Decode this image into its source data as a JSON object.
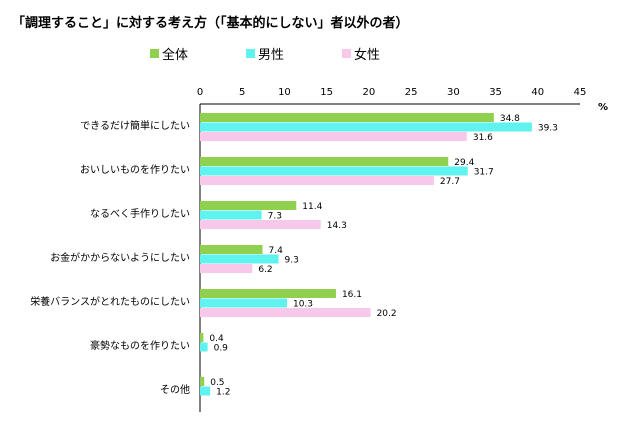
{
  "title": "「調理すること」に対する考え方（「基本的にしない」者以外の者）",
  "unit_label": "%",
  "colors": {
    "all": "#8fd14f",
    "male": "#5ff2ef",
    "female": "#f8c8ea"
  },
  "chart_data": {
    "type": "bar",
    "orientation": "horizontal",
    "title": "「調理すること」に対する考え方（「基本的にしない」者以外の者）",
    "xlim": [
      0,
      45
    ],
    "xticks": [
      0,
      5,
      10,
      15,
      20,
      25,
      30,
      35,
      40,
      45
    ],
    "unit": "%",
    "legend_position": "top",
    "categories": [
      "できるだけ簡単にしたい",
      "おいしいものを作りたい",
      "なるべく手作りしたい",
      "お金がかからないようにしたい",
      "栄養バランスがとれたものにしたい",
      "豪勢なものを作りたい",
      "その他"
    ],
    "series": [
      {
        "name": "全体",
        "values": [
          34.8,
          29.4,
          11.4,
          7.4,
          16.1,
          0.4,
          0.5
        ]
      },
      {
        "name": "男性",
        "values": [
          39.3,
          31.7,
          7.3,
          9.3,
          10.3,
          0.9,
          1.2
        ]
      },
      {
        "name": "女性",
        "values": [
          31.6,
          27.7,
          14.3,
          6.2,
          20.2,
          null,
          null
        ]
      }
    ]
  }
}
